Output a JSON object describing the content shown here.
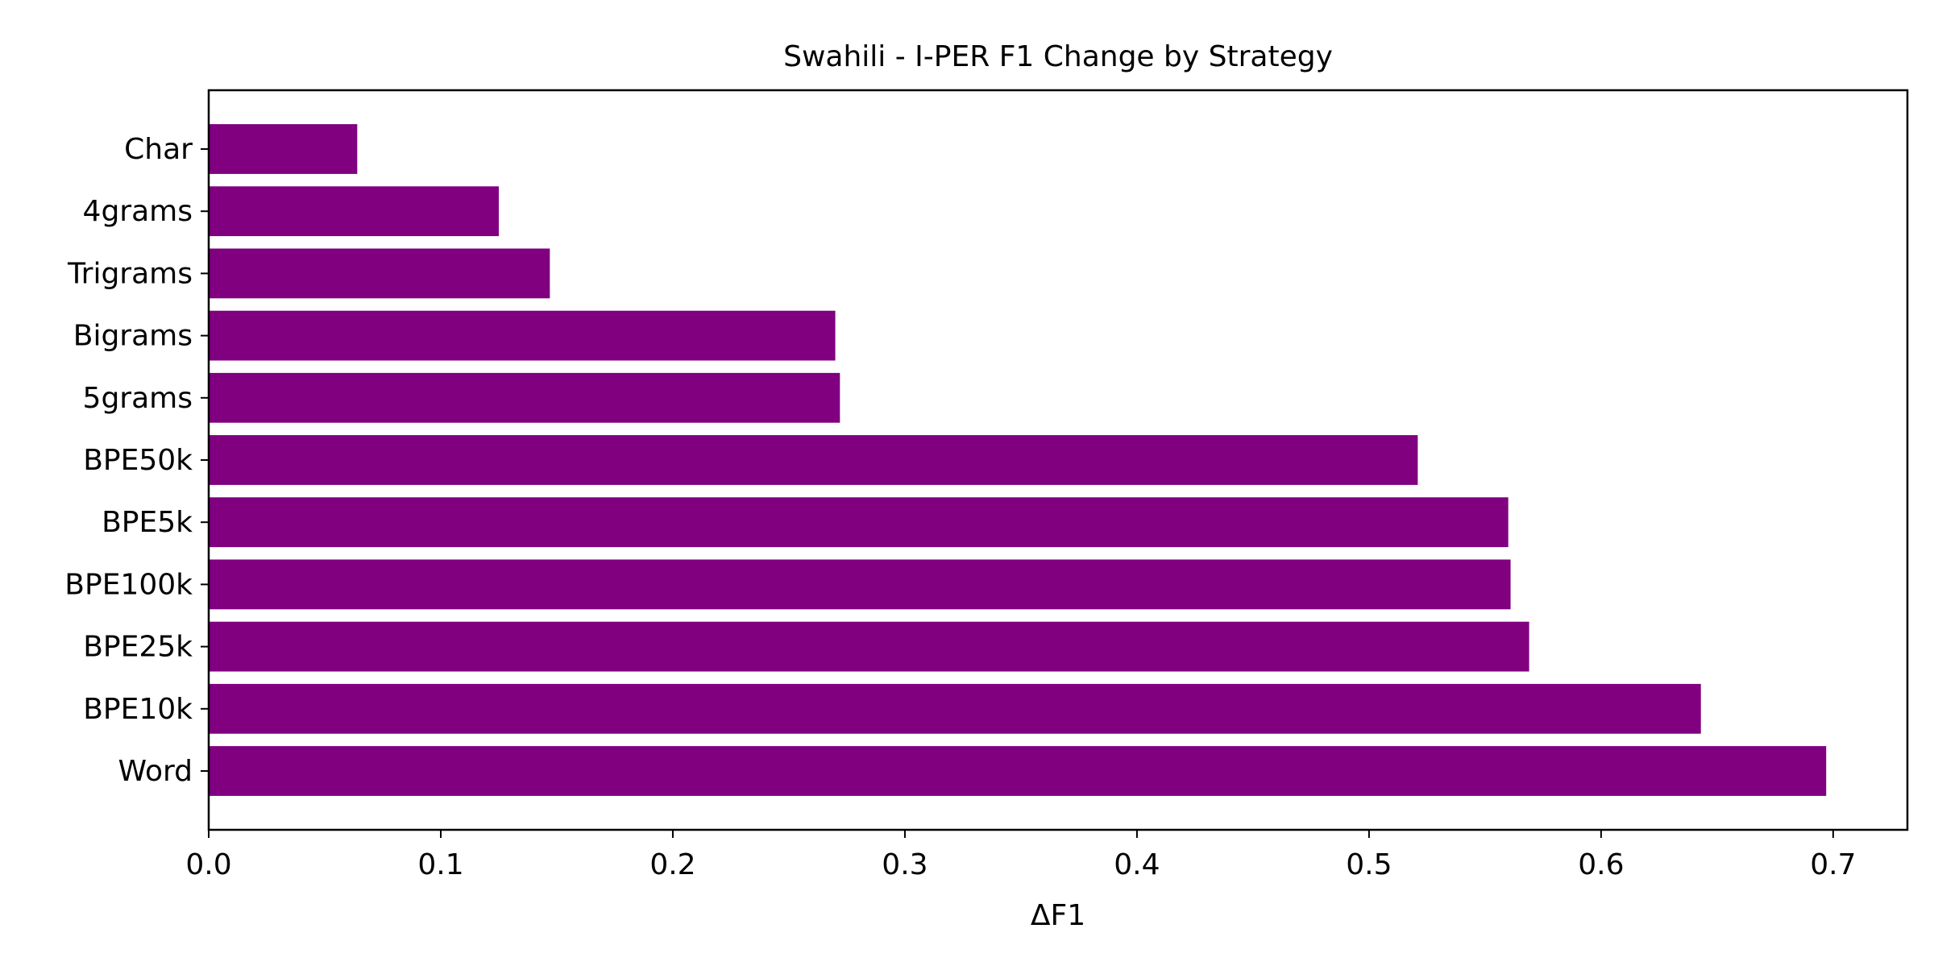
{
  "chart_data": {
    "type": "bar",
    "orientation": "horizontal",
    "title": "Swahili - I-PER F1 Change by Strategy",
    "xlabel": "ΔF1",
    "ylabel": "",
    "categories": [
      "Char",
      "4grams",
      "Trigrams",
      "Bigrams",
      "5grams",
      "BPE50k",
      "BPE5k",
      "BPE100k",
      "BPE25k",
      "BPE10k",
      "Word"
    ],
    "values": [
      0.064,
      0.125,
      0.147,
      0.27,
      0.272,
      0.521,
      0.56,
      0.561,
      0.569,
      0.643,
      0.697
    ],
    "xlim": [
      0,
      0.732
    ],
    "xticks": [
      0.0,
      0.1,
      0.2,
      0.3,
      0.4,
      0.5,
      0.6,
      0.7
    ],
    "xtick_labels": [
      "0.0",
      "0.1",
      "0.2",
      "0.3",
      "0.4",
      "0.5",
      "0.6",
      "0.7"
    ],
    "bar_color": "#800080",
    "grid": false,
    "legend": "none"
  }
}
